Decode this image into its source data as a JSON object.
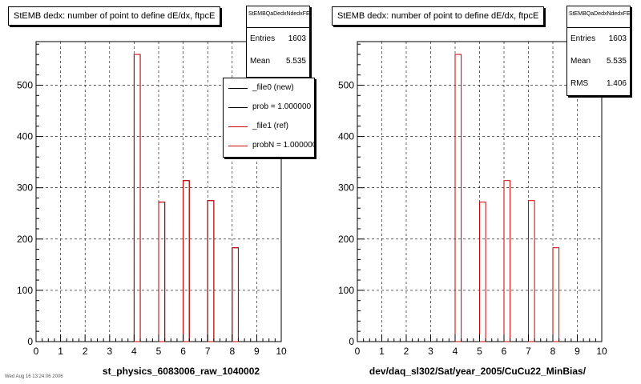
{
  "colors": {
    "new": "#000000",
    "ref": "#cc0000",
    "grid": "#000000"
  },
  "footer_text": "Wed Aug 16 13:24:06 2006",
  "chart_data": [
    {
      "type": "bar",
      "title": "StEMB dedx: number of point to define dE/dx, ftpcE",
      "xlabel": "st_physics_6083006_raw_1040002",
      "ylabel": "",
      "xlim": [
        0,
        10
      ],
      "ylim": [
        0,
        585
      ],
      "x_ticks": [
        "0",
        "1",
        "2",
        "3",
        "4",
        "5",
        "6",
        "7",
        "8",
        "9",
        "10"
      ],
      "y_ticks": [
        "0",
        "100",
        "200",
        "300",
        "400",
        "500"
      ],
      "grid": true,
      "bin_width": 0.25,
      "series": [
        {
          "name": "_file0 (new)",
          "color": "#000000",
          "x": [
            4.0,
            5.0,
            6.0,
            7.0,
            8.0
          ],
          "values": [
            560,
            272,
            314,
            275,
            183
          ]
        },
        {
          "name": "_file1 (ref)",
          "color": "#cc0000",
          "x": [
            4.0,
            5.0,
            6.0,
            7.0,
            8.0
          ],
          "values": [
            560,
            272,
            314,
            275,
            183
          ]
        }
      ],
      "stats": {
        "name": "StEMBQaDedxNdedxFE",
        "rows": [
          {
            "label": "Entries",
            "value": "1603"
          },
          {
            "label": "Mean",
            "value": "5.535"
          }
        ]
      },
      "legend": [
        {
          "label": "_file0 (new)",
          "color": "#000000"
        },
        {
          "label": "prob = 1.000000",
          "color": "#000000"
        },
        {
          "label": "_file1 (ref)",
          "color": "#cc0000"
        },
        {
          "label": "probN = 1.000000",
          "color": "#cc0000"
        }
      ],
      "legend_placement": "top-right"
    },
    {
      "type": "bar",
      "title": "StEMB dedx: number of point to define dE/dx, ftpcE",
      "xlabel": "dev/daq_sl302/Sat/year_2005/CuCu22_MinBias/",
      "ylabel": "",
      "xlim": [
        0,
        10
      ],
      "ylim": [
        0,
        585
      ],
      "x_ticks": [
        "0",
        "1",
        "2",
        "3",
        "4",
        "5",
        "6",
        "7",
        "8",
        "9",
        "10"
      ],
      "y_ticks": [
        "0",
        "100",
        "200",
        "300",
        "400",
        "500"
      ],
      "grid": true,
      "bin_width": 0.25,
      "series": [
        {
          "name": "",
          "color": "#cc0000",
          "x": [
            4.0,
            5.0,
            6.0,
            7.0,
            8.0
          ],
          "values": [
            560,
            272,
            314,
            275,
            183
          ]
        }
      ],
      "stats": {
        "name": "StEMBQaDedxNdedxFE",
        "rows": [
          {
            "label": "Entries",
            "value": "1603"
          },
          {
            "label": "Mean",
            "value": "5.535"
          },
          {
            "label": "RMS",
            "value": "1.406"
          }
        ]
      }
    }
  ]
}
